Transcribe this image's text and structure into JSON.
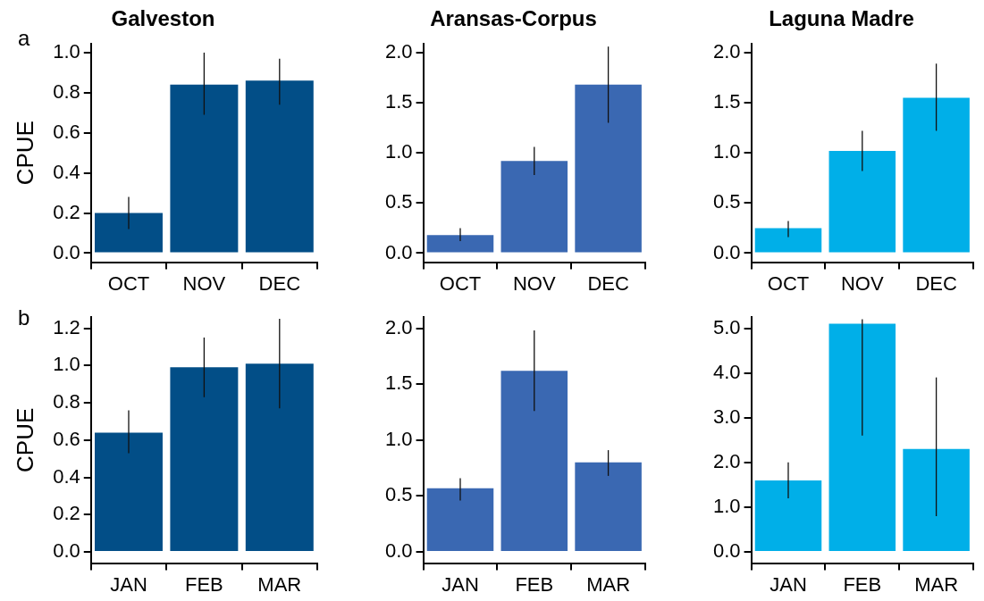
{
  "chart_data": [
    {
      "type": "bar",
      "title": "Galveston",
      "ylabel": "CPUE",
      "annotations": [
        "a"
      ],
      "categories": [
        "OCT",
        "NOV",
        "DEC"
      ],
      "series": [
        {
          "color": "#024e87",
          "values": [
            0.2,
            0.84,
            0.86
          ],
          "errors": [
            [
              0.12,
              0.28
            ],
            [
              0.69,
              1.0
            ],
            [
              0.74,
              0.97
            ]
          ]
        }
      ],
      "ylim": [
        -0.045,
        1.045
      ],
      "yticks": [
        {
          "value": 0,
          "label": "0.0"
        },
        {
          "value": 0.2,
          "label": "0.2"
        },
        {
          "value": 0.4,
          "label": "0.4"
        },
        {
          "value": 0.6,
          "label": "0.6"
        },
        {
          "value": 0.8,
          "label": "0.8"
        },
        {
          "value": 1,
          "label": "1.0"
        }
      ]
    },
    {
      "type": "bar",
      "title": "Aransas-Corpus",
      "categories": [
        "OCT",
        "NOV",
        "DEC"
      ],
      "series": [
        {
          "color": "#3a68b2",
          "values": [
            0.18,
            0.92,
            1.68
          ],
          "errors": [
            [
              0.12,
              0.25
            ],
            [
              0.78,
              1.06
            ],
            [
              1.3,
              2.06
            ]
          ]
        }
      ],
      "ylim": [
        -0.09,
        2.09
      ],
      "yticks": [
        {
          "value": 0,
          "label": "0.0"
        },
        {
          "value": 0.5,
          "label": "0.5"
        },
        {
          "value": 1,
          "label": "1.0"
        },
        {
          "value": 1.5,
          "label": "1.5"
        },
        {
          "value": 2,
          "label": "2.0"
        }
      ]
    },
    {
      "type": "bar",
      "title": "Laguna Madre",
      "categories": [
        "OCT",
        "NOV",
        "DEC"
      ],
      "series": [
        {
          "color": "#00afe8",
          "values": [
            0.25,
            1.02,
            1.55
          ],
          "errors": [
            [
              0.16,
              0.32
            ],
            [
              0.82,
              1.22
            ],
            [
              1.22,
              1.89
            ]
          ]
        }
      ],
      "ylim": [
        -0.09,
        2.09
      ],
      "yticks": [
        {
          "value": 0,
          "label": "0.0"
        },
        {
          "value": 0.5,
          "label": "0.5"
        },
        {
          "value": 1,
          "label": "1.0"
        },
        {
          "value": 1.5,
          "label": "1.5"
        },
        {
          "value": 2,
          "label": "2.0"
        }
      ]
    },
    {
      "type": "bar",
      "ylabel": "CPUE",
      "annotations": [
        "b"
      ],
      "categories": [
        "JAN",
        "FEB",
        "MAR"
      ],
      "series": [
        {
          "color": "#024e87",
          "values": [
            0.64,
            0.99,
            1.01
          ],
          "errors": [
            [
              0.53,
              0.76
            ],
            [
              0.83,
              1.15
            ],
            [
              0.77,
              1.25
            ]
          ]
        }
      ],
      "ylim": [
        -0.06,
        1.26
      ],
      "yticks": [
        {
          "value": 0,
          "label": "0.0"
        },
        {
          "value": 0.2,
          "label": "0.2"
        },
        {
          "value": 0.4,
          "label": "0.4"
        },
        {
          "value": 0.6,
          "label": "0.6"
        },
        {
          "value": 0.8,
          "label": "0.8"
        },
        {
          "value": 1,
          "label": "1.0"
        },
        {
          "value": 1.2,
          "label": "1.2"
        }
      ]
    },
    {
      "type": "bar",
      "categories": [
        "JAN",
        "FEB",
        "MAR"
      ],
      "series": [
        {
          "color": "#3a68b2",
          "values": [
            0.57,
            1.62,
            0.8
          ],
          "errors": [
            [
              0.46,
              0.66
            ],
            [
              1.26,
              1.98
            ],
            [
              0.68,
              0.91
            ]
          ]
        }
      ],
      "ylim": [
        -0.1,
        2.1
      ],
      "yticks": [
        {
          "value": 0,
          "label": "0.0"
        },
        {
          "value": 0.5,
          "label": "0.5"
        },
        {
          "value": 1,
          "label": "1.0"
        },
        {
          "value": 1.5,
          "label": "1.5"
        },
        {
          "value": 2,
          "label": "2.0"
        }
      ]
    },
    {
      "type": "bar",
      "categories": [
        "JAN",
        "FEB",
        "MAR"
      ],
      "series": [
        {
          "color": "#00afe8",
          "values": [
            1.6,
            5.1,
            2.3
          ],
          "errors": [
            [
              1.2,
              2.0
            ],
            [
              2.6,
              5.2
            ],
            [
              0.8,
              3.9
            ]
          ]
        }
      ],
      "ylim": [
        -0.25,
        5.25
      ],
      "yticks": [
        {
          "value": 0,
          "label": "0.0"
        },
        {
          "value": 1,
          "label": "1.0"
        },
        {
          "value": 2,
          "label": "2.0"
        },
        {
          "value": 3,
          "label": "3.0"
        },
        {
          "value": 4,
          "label": "4.0"
        },
        {
          "value": 5,
          "label": "5.0"
        }
      ]
    }
  ]
}
